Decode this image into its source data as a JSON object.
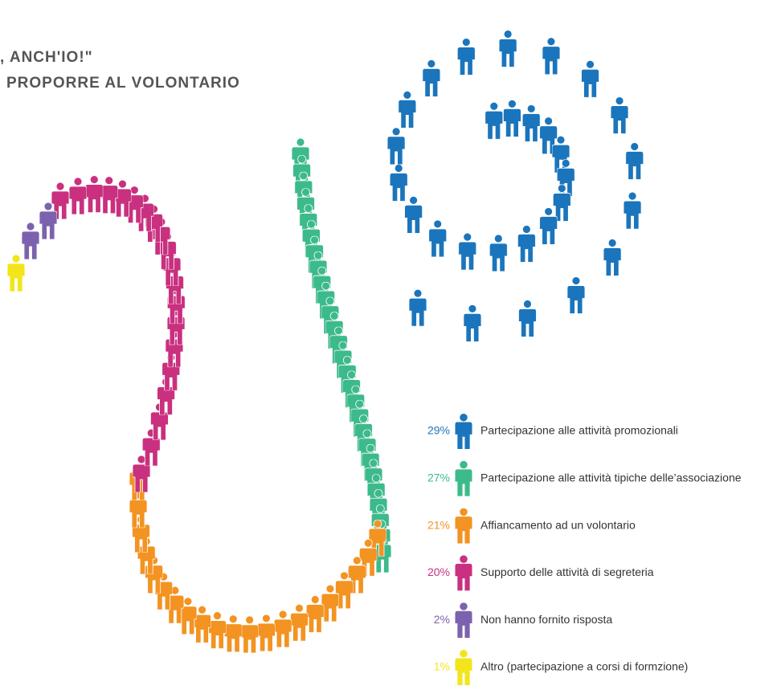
{
  "chart_data": {
    "type": "pictograph",
    "title": ", ANCH'IO!\"",
    "subtitle": "PROPORRE AL VOLONTARIO",
    "categories": [
      "Partecipazione alle attività promozionali",
      "Partecipazione alle attività tipiche delle’associazione",
      "Affiancamento ad un volontario",
      "Supporto delle attività di segreteria",
      "Non hanno fornito risposta",
      "Altro (partecipazione a corsi di formzione)"
    ],
    "values": [
      29,
      27,
      21,
      20,
      2,
      1
    ],
    "value_labels": [
      "29%",
      "27%",
      "21%",
      "20%",
      "2%",
      "1%"
    ],
    "colors": [
      "#1b75bc",
      "#3dba8b",
      "#f39322",
      "#c9307f",
      "#7c62ae",
      "#f2e51b"
    ]
  }
}
